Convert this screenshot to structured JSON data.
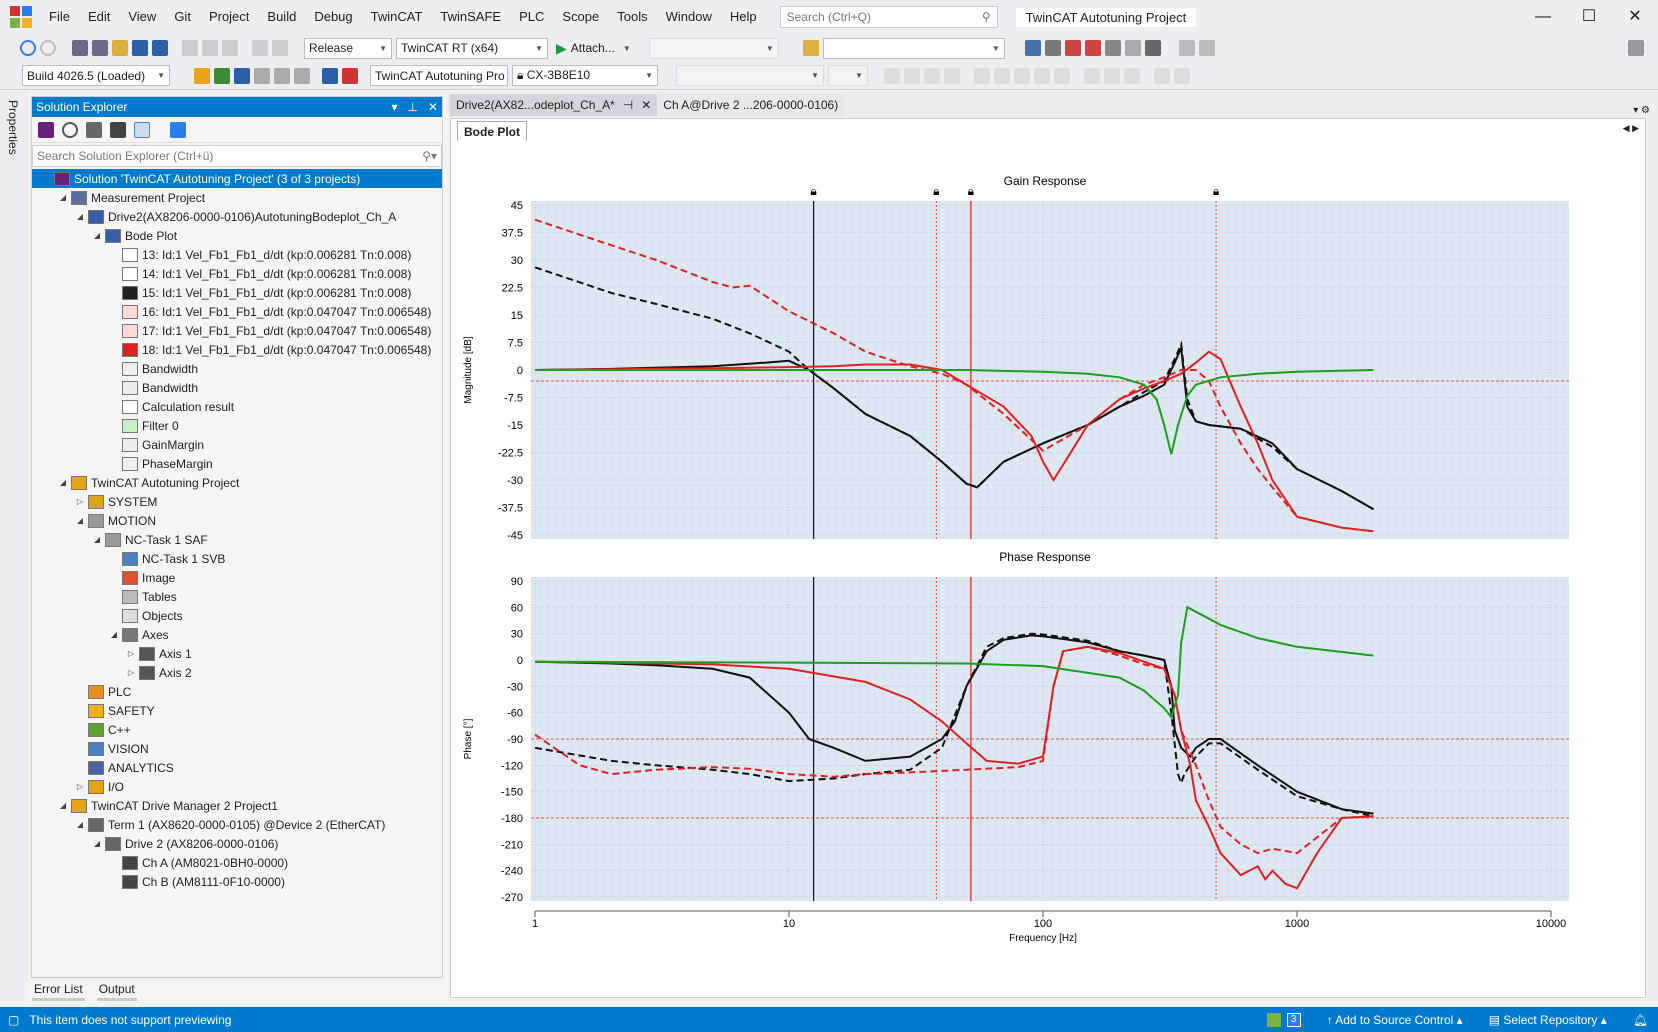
{
  "menu": [
    "File",
    "Edit",
    "View",
    "Git",
    "Project",
    "Build",
    "Debug",
    "TwinCAT",
    "TwinSAFE",
    "PLC",
    "Scope",
    "Tools",
    "Window",
    "Help"
  ],
  "search": {
    "placeholder": "Search (Ctrl+Q)"
  },
  "window_title": "TwinCAT Autotuning Project",
  "toolbar": {
    "config": "Release",
    "platform": "TwinCAT RT (x64)",
    "attach": "Attach...",
    "build": "Build 4026.5 (Loaded)",
    "project_combo": "TwinCAT Autotuning Pro",
    "target": "CX-3B8E10"
  },
  "solution_explorer": {
    "title": "Solution Explorer",
    "search_placeholder": "Search Solution Explorer (Ctrl+ü)",
    "items": [
      {
        "label": "Solution 'TwinCAT Autotuning Project' (3 of 3 projects)",
        "level": 0,
        "exp": "",
        "icon": "solution-icon",
        "color": "#68217a",
        "selected": true
      },
      {
        "label": "Measurement Project",
        "level": 1,
        "exp": "◢",
        "icon": "measurement-project-icon",
        "color": "#5b6e9c"
      },
      {
        "label": "Drive2(AX8206-0000-0106)AutotuningBodeplot_Ch_A",
        "level": 2,
        "exp": "◢",
        "icon": "scope-config-icon",
        "color": "#3a5fa8"
      },
      {
        "label": "Bode Plot",
        "level": 3,
        "exp": "◢",
        "icon": "bode-plot-icon",
        "color": "#3a5fa8"
      },
      {
        "label": "13: Id:1 Vel_Fb1_Fb1_d/dt (kp:0.006281 Tn:0.008)",
        "level": 4,
        "exp": "",
        "icon": "channel-icon",
        "color": "#ffffff"
      },
      {
        "label": "14: Id:1 Vel_Fb1_Fb1_d/dt (kp:0.006281 Tn:0.008)",
        "level": 4,
        "exp": "",
        "icon": "channel-icon",
        "color": "#ffffff"
      },
      {
        "label": "15: Id:1 Vel_Fb1_Fb1_d/dt (kp:0.006281 Tn:0.008)",
        "level": 4,
        "exp": "",
        "icon": "channel-rec-icon",
        "color": "#222222"
      },
      {
        "label": "16: Id:1 Vel_Fb1_Fb1_d/dt (kp:0.047047 Tn:0.006548)",
        "level": 4,
        "exp": "",
        "icon": "channel-icon",
        "color": "#ffd8d8"
      },
      {
        "label": "17: Id:1 Vel_Fb1_Fb1_d/dt (kp:0.047047 Tn:0.006548)",
        "level": 4,
        "exp": "",
        "icon": "channel-icon",
        "color": "#ffd8d8"
      },
      {
        "label": "18: Id:1 Vel_Fb1_Fb1_d/dt (kp:0.047047 Tn:0.006548)",
        "level": 4,
        "exp": "",
        "icon": "channel-rec-icon",
        "color": "#e02020"
      },
      {
        "label": "Bandwidth",
        "level": 4,
        "exp": "",
        "icon": "marker-icon",
        "color": "#eeeeee"
      },
      {
        "label": "Bandwidth",
        "level": 4,
        "exp": "",
        "icon": "marker-icon",
        "color": "#eeeeee"
      },
      {
        "label": "Calculation result",
        "level": 4,
        "exp": "",
        "icon": "calculation-icon",
        "color": "#ffffff"
      },
      {
        "label": "Filter 0",
        "level": 4,
        "exp": "",
        "icon": "filter-icon",
        "color": "#c8f0c8"
      },
      {
        "label": "GainMargin",
        "level": 4,
        "exp": "",
        "icon": "marker-icon",
        "color": "#eeeeee"
      },
      {
        "label": "PhaseMargin",
        "level": 4,
        "exp": "",
        "icon": "marker-icon",
        "color": "#eeeeee"
      },
      {
        "label": "TwinCAT Autotuning Project",
        "level": 1,
        "exp": "◢",
        "icon": "twincat-project-icon",
        "color": "#e8a317"
      },
      {
        "label": "SYSTEM",
        "level": 2,
        "exp": "▷",
        "icon": "system-icon",
        "color": "#d9a520"
      },
      {
        "label": "MOTION",
        "level": 2,
        "exp": "◢",
        "icon": "motion-icon",
        "color": "#9a9a9a"
      },
      {
        "label": "NC-Task 1 SAF",
        "level": 3,
        "exp": "◢",
        "icon": "nc-task-icon",
        "color": "#9a9a9a"
      },
      {
        "label": "NC-Task 1 SVB",
        "level": 4,
        "exp": "",
        "icon": "nc-task-icon",
        "color": "#4a7fc0"
      },
      {
        "label": "Image",
        "level": 4,
        "exp": "",
        "icon": "image-icon",
        "color": "#e05030"
      },
      {
        "label": "Tables",
        "level": 4,
        "exp": "",
        "icon": "table-icon",
        "color": "#bbbbbb"
      },
      {
        "label": "Objects",
        "level": 4,
        "exp": "",
        "icon": "objects-icon",
        "color": "#dddddd"
      },
      {
        "label": "Axes",
        "level": 4,
        "exp": "◢",
        "icon": "axes-icon",
        "color": "#777777"
      },
      {
        "label": "Axis 1",
        "level": 5,
        "exp": "▷",
        "icon": "axis-icon",
        "color": "#555555"
      },
      {
        "label": "Axis 2",
        "level": 5,
        "exp": "▷",
        "icon": "axis-icon",
        "color": "#555555"
      },
      {
        "label": "PLC",
        "level": 2,
        "exp": "",
        "icon": "plc-icon",
        "color": "#e89020"
      },
      {
        "label": "SAFETY",
        "level": 2,
        "exp": "",
        "icon": "safety-icon",
        "color": "#f0b020"
      },
      {
        "label": "C++",
        "level": 2,
        "exp": "",
        "icon": "cpp-icon",
        "color": "#60a030"
      },
      {
        "label": "VISION",
        "level": 2,
        "exp": "",
        "icon": "vision-icon",
        "color": "#4a7fc0"
      },
      {
        "label": "ANALYTICS",
        "level": 2,
        "exp": "",
        "icon": "analytics-icon",
        "color": "#5060a0"
      },
      {
        "label": "I/O",
        "level": 2,
        "exp": "▷",
        "icon": "io-icon",
        "color": "#e8a317"
      },
      {
        "label": "TwinCAT Drive Manager 2 Project1",
        "level": 1,
        "exp": "◢",
        "icon": "drive-manager-icon",
        "color": "#e8a317"
      },
      {
        "label": "Term 1 (AX8620-0000-0105) @Device 2 (EtherCAT)",
        "level": 2,
        "exp": "◢",
        "icon": "terminal-icon",
        "color": "#666666"
      },
      {
        "label": "Drive 2 (AX8206-0000-0106)",
        "level": 3,
        "exp": "◢",
        "icon": "drive-icon",
        "color": "#666666"
      },
      {
        "label": "Ch A (AM8021-0BH0-0000)",
        "level": 4,
        "exp": "",
        "icon": "motor-icon",
        "color": "#444444"
      },
      {
        "label": "Ch B (AM8111-0F10-0000)",
        "level": 4,
        "exp": "",
        "icon": "motor-icon",
        "color": "#444444"
      }
    ]
  },
  "bottom_tabs": [
    "Error List",
    "Output"
  ],
  "doc_tabs": [
    {
      "label": "Drive2(AX82...odeplot_Ch_A*",
      "active": true
    },
    {
      "label": "Ch A@Drive 2 ...206-0000-0106)",
      "active": false
    }
  ],
  "inner_tab": "Bode Plot",
  "properties_label": "Properties",
  "status": {
    "message": "This item does not support previewing",
    "count": "3",
    "source_control": "Add to Source Control",
    "repository": "Select Repository"
  },
  "chart_data": [
    {
      "type": "line",
      "title": "Gain Response",
      "ylabel": "Magnitude [dB]",
      "xlabel": "Frequency [Hz]",
      "xscale": "log",
      "xlim": [
        1,
        10000
      ],
      "ylim": [
        -45,
        45
      ],
      "yticks": [
        45,
        37.5,
        30,
        22.5,
        15,
        7.5,
        0,
        -7.5,
        -15,
        -22.5,
        -30,
        -37.5,
        -45
      ],
      "markers_hz": [
        12.5,
        38,
        52,
        480
      ],
      "series": [
        {
          "color": "#111111",
          "dash": false,
          "x": [
            1,
            2,
            5,
            8,
            10,
            12,
            15,
            20,
            30,
            40,
            50,
            55,
            70,
            100,
            150,
            200,
            250,
            300,
            330,
            350,
            370,
            400,
            450,
            600,
            800,
            1000,
            1500,
            2000
          ],
          "y": [
            0,
            0.3,
            1,
            2,
            2.5,
            0,
            -5,
            -12,
            -18,
            -25,
            -31,
            -32,
            -25,
            -20,
            -15,
            -10,
            -7,
            -4,
            2,
            6,
            -10,
            -14,
            -15,
            -16,
            -20,
            -27,
            -33,
            -38
          ]
        },
        {
          "color": "#111111",
          "dash": true,
          "x": [
            1,
            2,
            3,
            5,
            7,
            10,
            12,
            15,
            20,
            30,
            40,
            50,
            55,
            70,
            100,
            150,
            200,
            250,
            300,
            330,
            350,
            370,
            400,
            450,
            600,
            800,
            1000,
            1500,
            2000
          ],
          "y": [
            28,
            21,
            18,
            14,
            10,
            5,
            0,
            -5,
            -12,
            -18,
            -25,
            -31,
            -32,
            -25,
            -20,
            -15,
            -10,
            -6,
            -3,
            3,
            7,
            -8,
            -14,
            -15,
            -16,
            -21,
            -27,
            -33,
            -38
          ]
        },
        {
          "color": "#e02020",
          "dash": false,
          "x": [
            1,
            5,
            10,
            15,
            20,
            30,
            40,
            50,
            70,
            90,
            100,
            110,
            130,
            150,
            200,
            250,
            300,
            350,
            400,
            450,
            500,
            600,
            700,
            800,
            1000,
            1500,
            2000
          ],
          "y": [
            0,
            0.5,
            0.8,
            1,
            1.5,
            1.5,
            0,
            -4,
            -10,
            -18,
            -25,
            -30,
            -22,
            -15,
            -8,
            -5,
            -3,
            -1,
            2,
            5,
            3,
            -10,
            -20,
            -30,
            -40,
            -43,
            -44
          ]
        },
        {
          "color": "#e02020",
          "dash": true,
          "x": [
            1,
            2,
            3,
            5,
            6,
            7,
            10,
            15,
            20,
            30,
            40,
            50,
            70,
            100,
            150,
            200,
            250,
            300,
            350,
            400,
            450,
            500,
            600,
            700,
            800,
            1000,
            1500,
            2000
          ],
          "y": [
            41,
            34,
            30,
            24,
            22.5,
            23,
            16,
            10,
            5,
            1,
            -1,
            -4,
            -12,
            -22,
            -15,
            -8,
            -4,
            -2,
            0,
            0,
            -3,
            -10,
            -20,
            -27,
            -32,
            -40,
            -43,
            -44
          ]
        },
        {
          "color": "#1ca01c",
          "dash": false,
          "x": [
            1,
            10,
            50,
            100,
            150,
            200,
            250,
            280,
            300,
            320,
            340,
            370,
            400,
            500,
            700,
            1000,
            2000
          ],
          "y": [
            0,
            0,
            0,
            -0.5,
            -1,
            -2,
            -4,
            -8,
            -15,
            -23,
            -15,
            -7,
            -4,
            -2,
            -1,
            -0.5,
            0
          ]
        }
      ],
      "ref_lines": [
        {
          "y": -3,
          "color": "#e02020"
        }
      ]
    },
    {
      "type": "line",
      "title": "Phase Response",
      "ylabel": "Phase [°]",
      "xlabel": "Frequency [Hz]",
      "xscale": "log",
      "xlim": [
        1,
        10000
      ],
      "ylim": [
        -270,
        90
      ],
      "yticks": [
        90,
        60,
        30,
        0,
        -30,
        -60,
        -90,
        -120,
        -150,
        -180,
        -210,
        -240,
        -270
      ],
      "xticks": [
        "1",
        "10",
        "100",
        "1000",
        "10000"
      ],
      "series": [
        {
          "color": "#111111",
          "dash": false,
          "x": [
            1,
            2,
            3,
            5,
            7,
            10,
            12,
            15,
            20,
            30,
            40,
            45,
            50,
            60,
            70,
            90,
            100,
            150,
            200,
            250,
            300,
            320,
            330,
            350,
            380,
            400,
            450,
            500,
            700,
            1000,
            1500,
            2000
          ],
          "y": [
            -2,
            -4,
            -6,
            -10,
            -20,
            -60,
            -90,
            -100,
            -115,
            -110,
            -90,
            -70,
            -30,
            10,
            23,
            28,
            27,
            20,
            10,
            5,
            0,
            -30,
            -80,
            -100,
            -110,
            -100,
            -90,
            -90,
            -120,
            -150,
            -170,
            -175
          ]
        },
        {
          "color": "#111111",
          "dash": true,
          "x": [
            1,
            2,
            3,
            5,
            7,
            10,
            15,
            20,
            30,
            40,
            50,
            60,
            70,
            90,
            100,
            150,
            200,
            250,
            300,
            320,
            340,
            350,
            360,
            400,
            450,
            500,
            700,
            1000,
            1500,
            2000
          ],
          "y": [
            -100,
            -115,
            -120,
            -125,
            -130,
            -138,
            -135,
            -130,
            -125,
            -100,
            -30,
            15,
            25,
            30,
            29,
            22,
            10,
            5,
            0,
            -60,
            -130,
            -140,
            -130,
            -110,
            -95,
            -95,
            -125,
            -155,
            -170,
            -178
          ]
        },
        {
          "color": "#e02020",
          "dash": false,
          "x": [
            1,
            5,
            10,
            20,
            30,
            40,
            50,
            60,
            80,
            100,
            110,
            120,
            150,
            200,
            300,
            330,
            350,
            380,
            400,
            450,
            500,
            600,
            700,
            750,
            800,
            900,
            1000,
            1200,
            1500,
            2000
          ],
          "y": [
            -2,
            -5,
            -10,
            -25,
            -45,
            -70,
            -95,
            -115,
            -118,
            -110,
            -30,
            10,
            15,
            8,
            -10,
            -40,
            -80,
            -120,
            -160,
            -190,
            -220,
            -245,
            -235,
            -250,
            -240,
            -255,
            -260,
            -220,
            -180,
            -178
          ]
        },
        {
          "color": "#e02020",
          "dash": true,
          "x": [
            1,
            1.5,
            2,
            3,
            5,
            7,
            10,
            15,
            20,
            30,
            50,
            80,
            100,
            110,
            120,
            150,
            200,
            250,
            300,
            330,
            350,
            400,
            450,
            500,
            600,
            700,
            800,
            1000,
            1500,
            2000
          ],
          "y": [
            -85,
            -120,
            -130,
            -125,
            -122,
            -124,
            -130,
            -133,
            -130,
            -128,
            -125,
            -122,
            -115,
            -30,
            10,
            15,
            5,
            -5,
            -10,
            -40,
            -80,
            -120,
            -160,
            -190,
            -210,
            -220,
            -215,
            -220,
            -180,
            -178
          ]
        },
        {
          "color": "#1ca01c",
          "dash": false,
          "x": [
            1,
            10,
            50,
            100,
            200,
            250,
            300,
            320,
            340,
            350,
            370,
            400,
            500,
            700,
            1000,
            2000
          ],
          "y": [
            -2,
            -3,
            -4,
            -7,
            -20,
            -35,
            -55,
            -65,
            -40,
            20,
            60,
            55,
            40,
            25,
            15,
            5
          ]
        }
      ],
      "ref_lines": [
        {
          "y": -90,
          "color": "#e02020"
        },
        {
          "y": -180,
          "color": "#e02020"
        }
      ]
    }
  ]
}
